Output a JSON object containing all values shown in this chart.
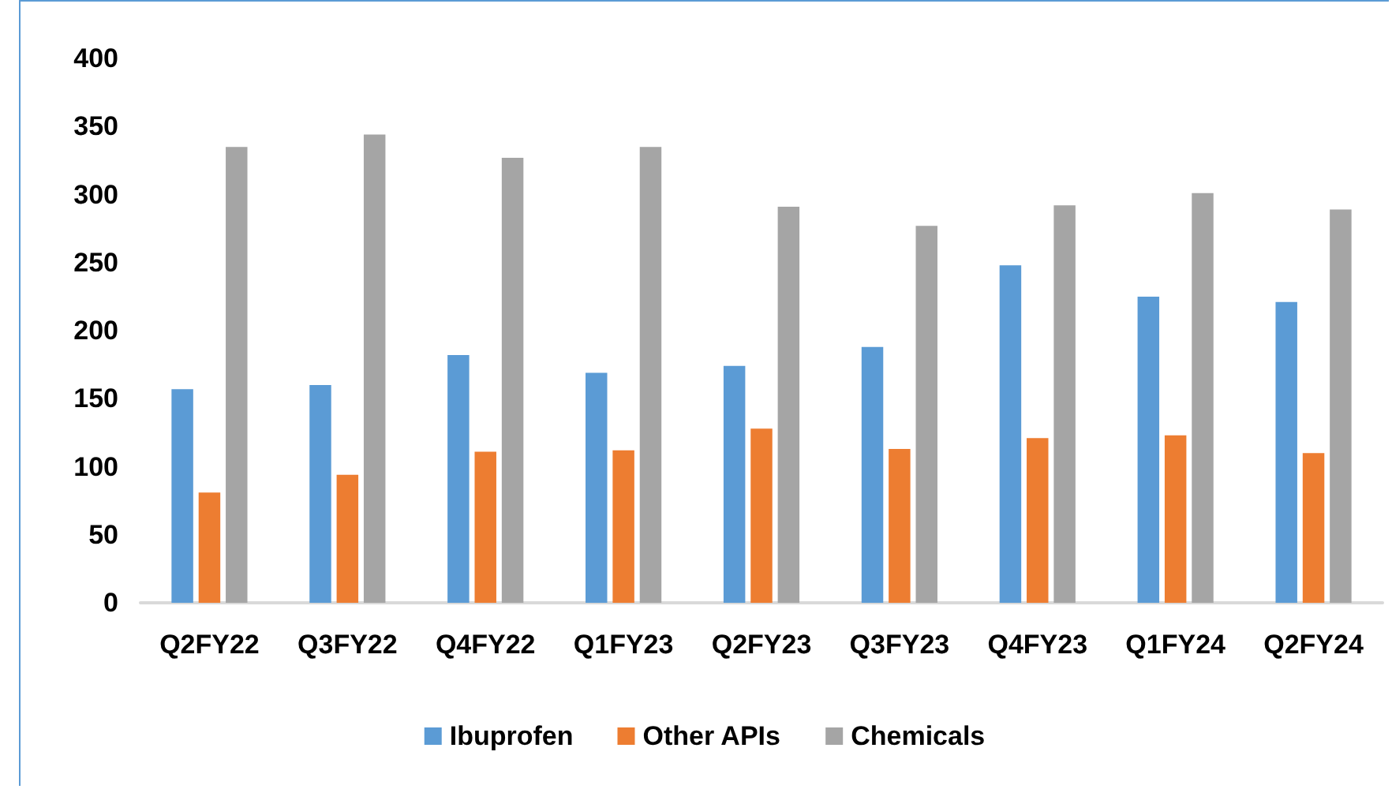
{
  "chart_data": {
    "type": "bar",
    "categories": [
      "Q2FY22",
      "Q3FY22",
      "Q4FY22",
      "Q1FY23",
      "Q2FY23",
      "Q3FY23",
      "Q4FY23",
      "Q1FY24",
      "Q2FY24"
    ],
    "series": [
      {
        "name": "Ibuprofen",
        "color": "#5b9bd5",
        "values": [
          157,
          160,
          182,
          169,
          174,
          188,
          248,
          225,
          221
        ]
      },
      {
        "name": "Other APIs",
        "color": "#ed7d31",
        "values": [
          81,
          94,
          111,
          112,
          128,
          113,
          121,
          123,
          110
        ]
      },
      {
        "name": "Chemicals",
        "color": "#a5a5a5",
        "values": [
          335,
          344,
          327,
          335,
          291,
          277,
          292,
          301,
          289
        ]
      }
    ],
    "ylim": [
      0,
      400
    ],
    "yticks": [
      0,
      50,
      100,
      150,
      200,
      250,
      300,
      350,
      400
    ],
    "grid": false,
    "legend": "bottom"
  }
}
